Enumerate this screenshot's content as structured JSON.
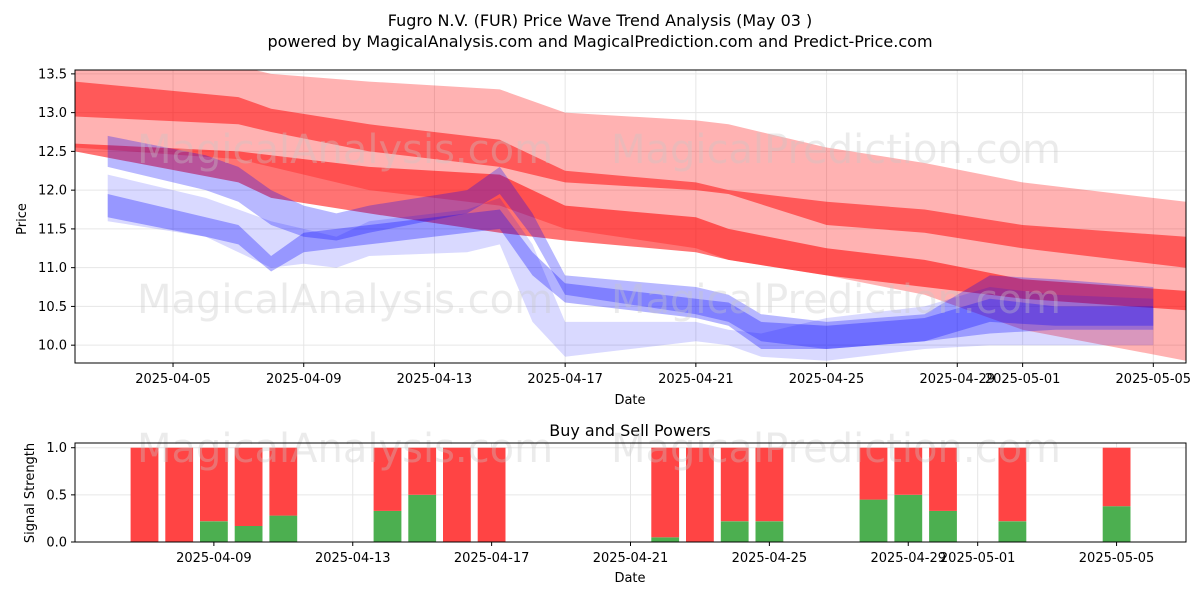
{
  "title": "Fugro N.V. (FUR) Price Wave Trend Analysis (May 03 )",
  "subtitle": "powered by MagicalAnalysis.com and MagicalPrediction.com and Predict-Price.com",
  "watermarks": [
    "MagicalAnalysis.com",
    "MagicalPrediction.com"
  ],
  "chart_data": [
    {
      "type": "area",
      "title": "",
      "xlabel": "Date",
      "ylabel": "Price",
      "xlim": [
        "2025-04-02",
        "2025-05-06"
      ],
      "ylim": [
        9.77,
        13.55
      ],
      "x_ticks": [
        "2025-04-05",
        "2025-04-09",
        "2025-04-13",
        "2025-04-17",
        "2025-04-21",
        "2025-04-25",
        "2025-04-29",
        "2025-05-01",
        "2025-05-05"
      ],
      "y_ticks": [
        10.0,
        10.5,
        11.0,
        11.5,
        12.0,
        12.5,
        13.0,
        13.5
      ],
      "grid": true,
      "colors": {
        "bearish": "#ff0000",
        "bullish": "#0000ff"
      },
      "series": [
        {
          "color": "#ff0000",
          "opacity": 0.3,
          "x": [
            "2025-04-02",
            "2025-04-07",
            "2025-04-08",
            "2025-04-11",
            "2025-04-15",
            "2025-04-17",
            "2025-04-21",
            "2025-04-22",
            "2025-04-25",
            "2025-04-28",
            "2025-05-01",
            "2025-05-06"
          ],
          "upper": [
            13.6,
            13.6,
            13.5,
            13.4,
            13.3,
            13.0,
            12.9,
            12.85,
            12.55,
            12.35,
            12.1,
            11.85
          ],
          "lower": [
            12.55,
            12.4,
            12.3,
            12.0,
            11.8,
            11.5,
            11.25,
            11.1,
            10.9,
            10.65,
            10.2,
            9.8
          ]
        },
        {
          "color": "#ff0000",
          "opacity": 0.5,
          "x": [
            "2025-04-02",
            "2025-04-07",
            "2025-04-08",
            "2025-04-11",
            "2025-04-15",
            "2025-04-17",
            "2025-04-21",
            "2025-04-22",
            "2025-04-25",
            "2025-04-28",
            "2025-05-01",
            "2025-05-06"
          ],
          "upper": [
            13.4,
            13.2,
            13.05,
            12.85,
            12.65,
            12.25,
            12.1,
            12.0,
            11.85,
            11.75,
            11.55,
            11.4
          ],
          "lower": [
            12.95,
            12.85,
            12.75,
            12.5,
            12.3,
            12.1,
            12.0,
            11.95,
            11.55,
            11.45,
            11.25,
            11.0
          ]
        },
        {
          "color": "#ff0000",
          "opacity": 0.55,
          "x": [
            "2025-04-02",
            "2025-04-07",
            "2025-04-08",
            "2025-04-11",
            "2025-04-15",
            "2025-04-17",
            "2025-04-21",
            "2025-04-22",
            "2025-04-25",
            "2025-04-28",
            "2025-05-01",
            "2025-05-06"
          ],
          "upper": [
            12.6,
            12.5,
            12.45,
            12.3,
            12.2,
            11.8,
            11.65,
            11.5,
            11.25,
            11.1,
            10.85,
            10.7
          ],
          "lower": [
            12.5,
            12.1,
            11.9,
            11.7,
            11.45,
            11.35,
            11.2,
            11.1,
            10.9,
            10.75,
            10.6,
            10.45
          ]
        },
        {
          "color": "#0000ff",
          "opacity": 0.28,
          "x": [
            "2025-04-03",
            "2025-04-06",
            "2025-04-07",
            "2025-04-08",
            "2025-04-09",
            "2025-04-10",
            "2025-04-11",
            "2025-04-14",
            "2025-04-15",
            "2025-04-16",
            "2025-04-17",
            "2025-04-21",
            "2025-04-22",
            "2025-04-23",
            "2025-04-25",
            "2025-04-28",
            "2025-04-30",
            "2025-05-02",
            "2025-05-05"
          ],
          "upper": [
            12.7,
            12.45,
            12.3,
            12.0,
            11.8,
            11.7,
            11.8,
            12.0,
            12.3,
            11.7,
            10.9,
            10.75,
            10.65,
            10.4,
            10.3,
            10.4,
            10.9,
            10.85,
            10.75
          ],
          "lower": [
            12.3,
            12.0,
            11.85,
            11.55,
            11.4,
            11.35,
            11.45,
            11.7,
            11.95,
            11.4,
            10.65,
            10.4,
            10.3,
            10.05,
            9.95,
            10.05,
            10.15,
            10.2,
            10.2
          ]
        },
        {
          "color": "#0000ff",
          "opacity": 0.3,
          "x": [
            "2025-04-03",
            "2025-04-06",
            "2025-04-07",
            "2025-04-08",
            "2025-04-09",
            "2025-04-10",
            "2025-04-11",
            "2025-04-14",
            "2025-04-15",
            "2025-04-16",
            "2025-04-17",
            "2025-04-21",
            "2025-04-22",
            "2025-04-23",
            "2025-04-25",
            "2025-04-28",
            "2025-04-30",
            "2025-05-02",
            "2025-05-05"
          ],
          "upper": [
            11.95,
            11.65,
            11.55,
            11.15,
            11.45,
            11.5,
            11.55,
            11.7,
            11.75,
            11.2,
            10.8,
            10.6,
            10.55,
            10.3,
            10.25,
            10.35,
            10.6,
            10.5,
            10.5
          ],
          "lower": [
            11.65,
            11.4,
            11.3,
            10.95,
            11.2,
            11.25,
            11.3,
            11.45,
            11.5,
            10.9,
            10.55,
            10.35,
            10.25,
            9.95,
            9.95,
            10.05,
            10.3,
            10.25,
            10.25
          ]
        },
        {
          "color": "#0000ff",
          "opacity": 0.15,
          "x": [
            "2025-04-03",
            "2025-04-06",
            "2025-04-07",
            "2025-04-08",
            "2025-04-09",
            "2025-04-10",
            "2025-04-11",
            "2025-04-14",
            "2025-04-15",
            "2025-04-16",
            "2025-04-17",
            "2025-04-21",
            "2025-04-22",
            "2025-04-23",
            "2025-04-25",
            "2025-04-28",
            "2025-04-30",
            "2025-05-02",
            "2025-05-05"
          ],
          "upper": [
            12.2,
            11.9,
            11.75,
            11.6,
            11.5,
            11.4,
            11.6,
            11.75,
            11.9,
            11.3,
            10.3,
            10.3,
            10.2,
            10.15,
            10.35,
            10.5,
            10.75,
            10.65,
            10.6
          ],
          "lower": [
            11.6,
            11.4,
            11.2,
            11.0,
            11.05,
            11.0,
            11.15,
            11.2,
            11.3,
            10.3,
            9.85,
            10.05,
            10.0,
            9.85,
            9.8,
            9.95,
            10.0,
            10.0,
            10.0
          ]
        }
      ]
    },
    {
      "type": "bar",
      "title": "Buy and Sell Powers",
      "xlabel": "Date",
      "ylabel": "Signal Strength",
      "xlim": [
        "2025-04-05",
        "2025-05-07"
      ],
      "ylim": [
        0,
        1.05
      ],
      "x_ticks": [
        "2025-04-09",
        "2025-04-13",
        "2025-04-17",
        "2025-04-21",
        "2025-04-25",
        "2025-04-29",
        "2025-05-01",
        "2025-05-05"
      ],
      "y_ticks": [
        0.0,
        0.5,
        1.0
      ],
      "grid": true,
      "colors": {
        "buy": "#4caf50",
        "sell": "#ff4444"
      },
      "categories": [
        "2025-04-07",
        "2025-04-08",
        "2025-04-09",
        "2025-04-10",
        "2025-04-11",
        "2025-04-14",
        "2025-04-15",
        "2025-04-16",
        "2025-04-17",
        "2025-04-22",
        "2025-04-23",
        "2025-04-24",
        "2025-04-25",
        "2025-04-28",
        "2025-04-29",
        "2025-04-30",
        "2025-05-02",
        "2025-05-05"
      ],
      "buy": [
        0.0,
        0.0,
        0.22,
        0.17,
        0.28,
        0.33,
        0.5,
        0.0,
        0.0,
        0.05,
        0.0,
        0.22,
        0.22,
        0.45,
        0.5,
        0.33,
        0.22,
        0.38
      ],
      "sell": [
        1.0,
        1.0,
        0.78,
        0.83,
        0.72,
        0.67,
        0.5,
        1.0,
        1.0,
        0.95,
        1.0,
        0.78,
        0.78,
        0.55,
        0.5,
        0.67,
        0.78,
        0.62
      ]
    }
  ]
}
